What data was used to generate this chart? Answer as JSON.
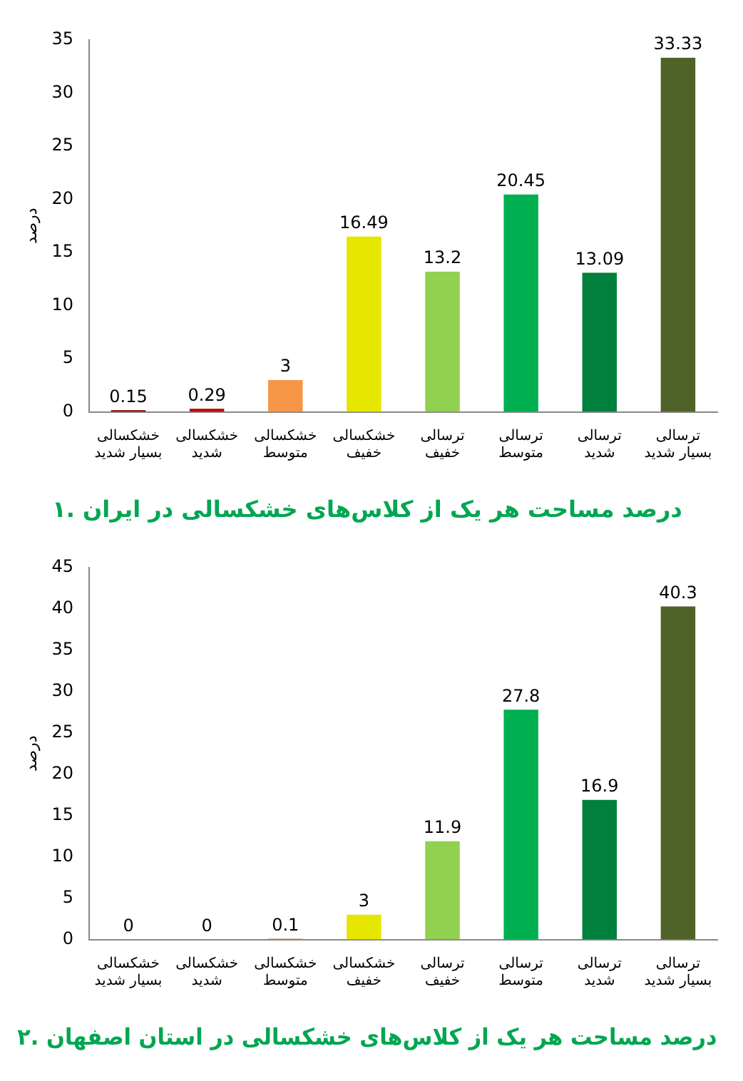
{
  "chart_data": [
    {
      "type": "bar",
      "title": "۱. درصد مساحت هر یک از کلاس‌های خشکسالی در ایران",
      "ylabel": "درصد",
      "categories": [
        "خشکسالی بسیار شدید",
        "خشکسالی شدید",
        "خشکسالی متوسط",
        "خشکسالی خفیف",
        "ترسالی خفیف",
        "ترسالی متوسط",
        "ترسالی شدید",
        "ترسالی بسیار شدید"
      ],
      "values": [
        0.15,
        0.29,
        3,
        16.49,
        13.2,
        20.45,
        13.09,
        33.33
      ],
      "colors": [
        "#8b0000",
        "#c00000",
        "#f79646",
        "#e6e600",
        "#92d050",
        "#00b050",
        "#00803c",
        "#4f6228"
      ],
      "ylim": [
        0,
        35
      ],
      "yticks": [
        0,
        5,
        10,
        15,
        20,
        25,
        30,
        35
      ],
      "data_labels": true,
      "grid": false,
      "legend": false
    },
    {
      "type": "bar",
      "title": "۲. درصد مساحت هر یک از کلاس‌های خشکسالی در استان اصفهان",
      "ylabel": "درصد",
      "categories": [
        "خشکسالی بسیار شدید",
        "خشکسالی شدید",
        "خشکسالی متوسط",
        "خشکسالی خفیف",
        "ترسالی خفیف",
        "ترسالی متوسط",
        "ترسالی شدید",
        "ترسالی بسیار شدید"
      ],
      "values": [
        0,
        0,
        0.1,
        3,
        11.9,
        27.8,
        16.9,
        40.3
      ],
      "colors": [
        "#8b0000",
        "#c00000",
        "#c0783c",
        "#e6e600",
        "#92d050",
        "#00b050",
        "#00803c",
        "#4f6228"
      ],
      "ylim": [
        0,
        45
      ],
      "yticks": [
        0,
        5,
        10,
        15,
        20,
        25,
        30,
        35,
        40,
        45
      ],
      "data_labels": true,
      "grid": false,
      "legend": false
    }
  ]
}
